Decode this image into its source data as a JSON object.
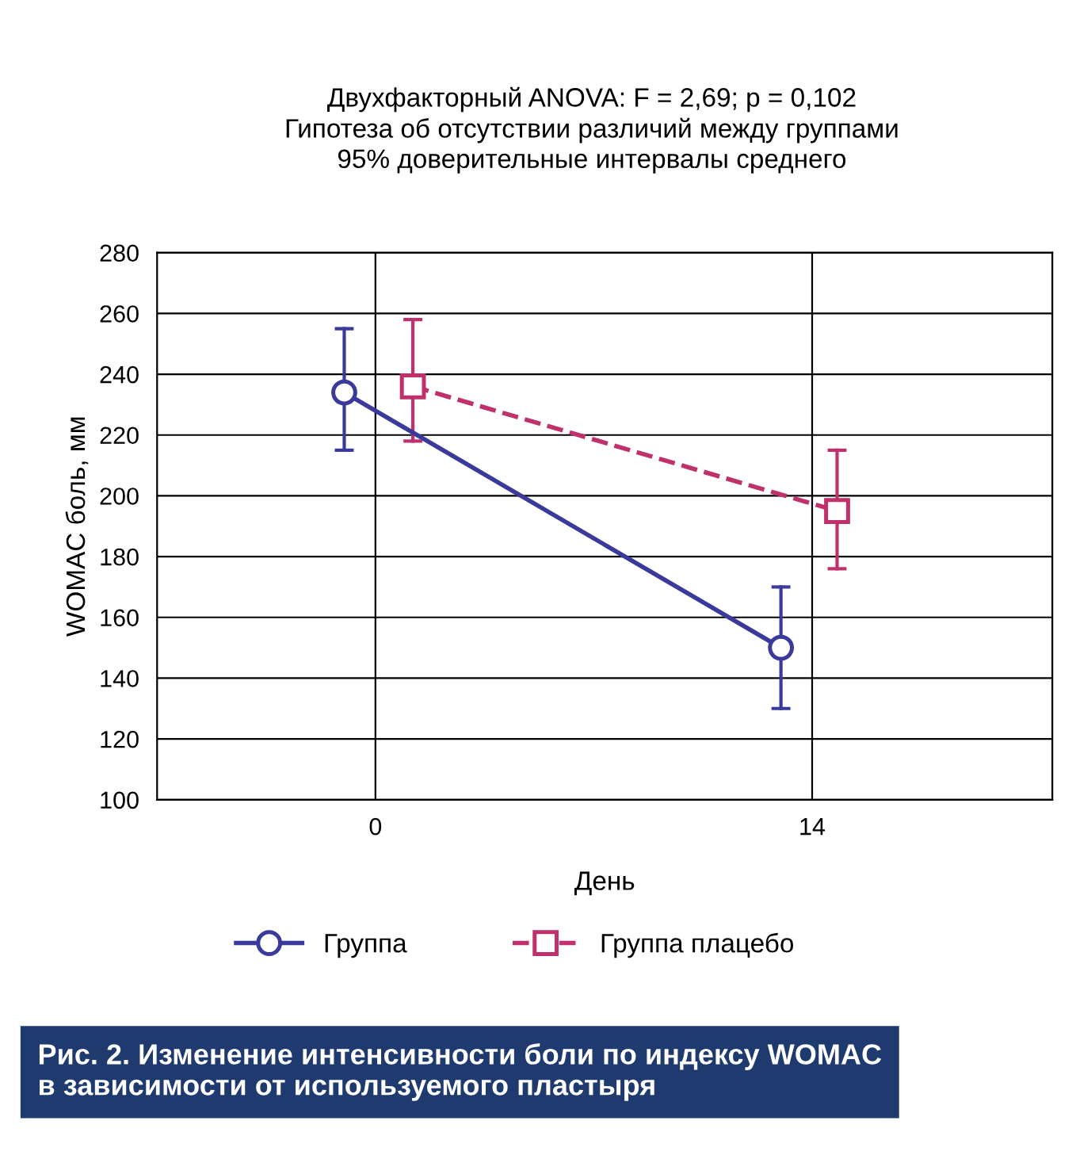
{
  "chart_data": {
    "type": "line",
    "title": "Двухфакторный ANOVA: F = 2,69; p = 0,102\nГипотеза об отсутствии различий между группами\n95% доверительные интервалы среднего",
    "xlabel": "День",
    "ylabel": "WOMAC боль, мм",
    "xlim": [
      -7,
      21.7
    ],
    "xticks": [
      0,
      14
    ],
    "ylim": [
      100,
      280
    ],
    "yticks": [
      100,
      120,
      140,
      160,
      180,
      200,
      220,
      240,
      260,
      280
    ],
    "grid": true,
    "legend": "bottom",
    "series": [
      {
        "name": "Группа",
        "color": "#3a3a9c",
        "x": [
          -1,
          13
        ],
        "values": [
          234,
          150
        ],
        "errors": [
          [
            215,
            255
          ],
          [
            130,
            170
          ]
        ],
        "marker": "circle",
        "line_style": "solid"
      },
      {
        "name": "Группа плацебо",
        "color": "#c0306a",
        "x": [
          1.2,
          14.8
        ],
        "values": [
          236,
          195
        ],
        "errors": [
          [
            218,
            258
          ],
          [
            176,
            215
          ]
        ],
        "marker": "square",
        "line_style": "dashed"
      }
    ],
    "annotations": [
      "Рис. 2. Изменение интенсивности боли по индексу WOMAC\nв зависимости от используемого пластыря"
    ]
  }
}
